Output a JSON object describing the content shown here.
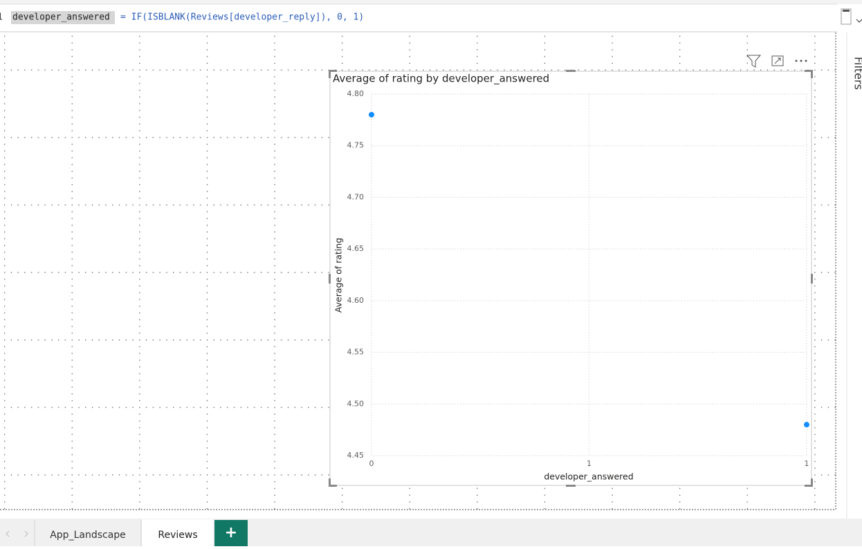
{
  "formula": {
    "line_number": "1",
    "name": "developer_answered",
    "expression": "= IF(ISBLANK(Reviews[developer_reply]), 0, 1)"
  },
  "filters_label": "Filters",
  "tabs": [
    "App_Landscape",
    "Reviews"
  ],
  "add_tab": "+",
  "chart_data": {
    "type": "scatter",
    "title": "Average of rating by developer_answered",
    "x_label": "developer_answered",
    "y_label": "Average of rating",
    "x": [
      0,
      1
    ],
    "values": [
      4.78,
      4.48
    ],
    "color": "#118dff",
    "xlim": [
      0,
      1
    ],
    "xticks": [
      0,
      {
        "value": 0.5,
        "label": "1"
      },
      1
    ],
    "ylim": [
      4.45,
      4.8
    ],
    "yticks": [
      4.45,
      {
        "value": 4.5,
        "label": "4.50"
      },
      4.55,
      {
        "value": 4.6,
        "label": "4.60"
      },
      4.65,
      {
        "value": 4.7,
        "label": "4.70"
      },
      4.75,
      {
        "value": 4.8,
        "label": "4.80"
      }
    ],
    "grid": true
  }
}
